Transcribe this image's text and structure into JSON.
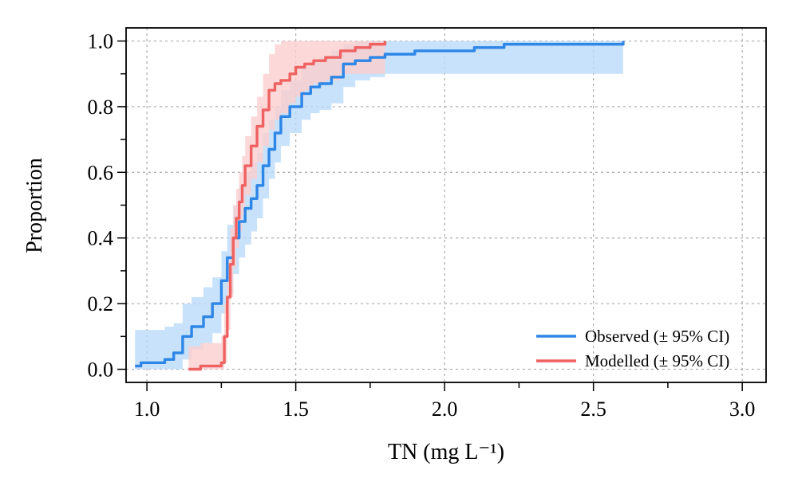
{
  "chart_data": {
    "type": "line",
    "xlabel": "TN (mg L⁻¹)",
    "ylabel": "Proportion",
    "xlim": [
      0.93,
      3.08
    ],
    "ylim": [
      -0.04,
      1.04
    ],
    "x_ticks": [
      1.0,
      1.5,
      2.0,
      2.5,
      3.0
    ],
    "x_tick_labels": [
      "1.0",
      "1.5",
      "2.0",
      "2.5",
      "3.0"
    ],
    "x_minor_ticks": [
      1.25,
      1.75,
      2.25,
      2.75
    ],
    "y_ticks": [
      0.0,
      0.2,
      0.4,
      0.6,
      0.8,
      1.0
    ],
    "y_tick_labels": [
      "0.0",
      "0.2",
      "0.4",
      "0.6",
      "0.8",
      "1.0"
    ],
    "y_minor_ticks": [
      0.1,
      0.3,
      0.5,
      0.7,
      0.9
    ],
    "grid": true,
    "legend_position": "bottom-right",
    "series": [
      {
        "name": "Observed (± 95% CI)",
        "color": "#2e86e6",
        "band_color": "#b9dafa",
        "x": [
          0.96,
          0.98,
          1.02,
          1.06,
          1.09,
          1.12,
          1.15,
          1.19,
          1.22,
          1.25,
          1.27,
          1.29,
          1.31,
          1.33,
          1.35,
          1.37,
          1.39,
          1.41,
          1.43,
          1.45,
          1.48,
          1.52,
          1.55,
          1.58,
          1.62,
          1.66,
          1.7,
          1.75,
          1.8,
          1.9,
          2.0,
          2.1,
          2.2,
          2.4,
          2.6
        ],
        "y": [
          0.01,
          0.02,
          0.02,
          0.03,
          0.05,
          0.1,
          0.13,
          0.16,
          0.2,
          0.27,
          0.34,
          0.4,
          0.45,
          0.49,
          0.52,
          0.56,
          0.62,
          0.67,
          0.72,
          0.77,
          0.8,
          0.84,
          0.86,
          0.87,
          0.89,
          0.93,
          0.94,
          0.95,
          0.96,
          0.97,
          0.97,
          0.98,
          0.99,
          0.99,
          1.0
        ],
        "lower": [
          0.0,
          0.0,
          0.0,
          0.0,
          0.0,
          0.03,
          0.06,
          0.08,
          0.11,
          0.17,
          0.23,
          0.29,
          0.34,
          0.38,
          0.42,
          0.46,
          0.52,
          0.58,
          0.63,
          0.68,
          0.72,
          0.76,
          0.78,
          0.79,
          0.81,
          0.86,
          0.88,
          0.89,
          0.9,
          0.9,
          0.9,
          0.9,
          0.9,
          0.9,
          0.9
        ],
        "upper": [
          0.12,
          0.12,
          0.12,
          0.13,
          0.14,
          0.2,
          0.22,
          0.25,
          0.28,
          0.36,
          0.44,
          0.5,
          0.56,
          0.6,
          0.63,
          0.66,
          0.72,
          0.76,
          0.8,
          0.85,
          0.88,
          0.92,
          0.94,
          0.95,
          0.97,
          0.99,
          1.0,
          1.0,
          1.0,
          1.0,
          1.0,
          1.0,
          1.0,
          1.0,
          1.0
        ]
      },
      {
        "name": "Modelled (± 95% CI)",
        "color": "#ef6262",
        "band_color": "#fbcdcd",
        "x": [
          1.14,
          1.18,
          1.22,
          1.25,
          1.26,
          1.27,
          1.28,
          1.29,
          1.3,
          1.31,
          1.32,
          1.33,
          1.35,
          1.37,
          1.39,
          1.41,
          1.43,
          1.45,
          1.48,
          1.5,
          1.53,
          1.56,
          1.6,
          1.65,
          1.7,
          1.75,
          1.8
        ],
        "y": [
          0.0,
          0.01,
          0.01,
          0.02,
          0.1,
          0.22,
          0.32,
          0.4,
          0.46,
          0.51,
          0.56,
          0.62,
          0.68,
          0.74,
          0.79,
          0.85,
          0.87,
          0.88,
          0.9,
          0.92,
          0.93,
          0.94,
          0.95,
          0.97,
          0.98,
          0.99,
          1.0
        ],
        "lower": [
          0.0,
          0.0,
          0.0,
          0.0,
          0.02,
          0.12,
          0.22,
          0.31,
          0.37,
          0.42,
          0.47,
          0.53,
          0.58,
          0.63,
          0.68,
          0.73,
          0.76,
          0.78,
          0.81,
          0.83,
          0.85,
          0.87,
          0.88,
          0.9,
          0.9,
          0.9,
          0.9
        ],
        "upper": [
          0.07,
          0.08,
          0.08,
          0.1,
          0.2,
          0.33,
          0.43,
          0.5,
          0.55,
          0.6,
          0.65,
          0.71,
          0.77,
          0.83,
          0.9,
          0.96,
          0.99,
          1.0,
          1.0,
          1.0,
          1.0,
          1.0,
          1.0,
          1.0,
          1.0,
          1.0,
          1.0
        ]
      }
    ]
  }
}
